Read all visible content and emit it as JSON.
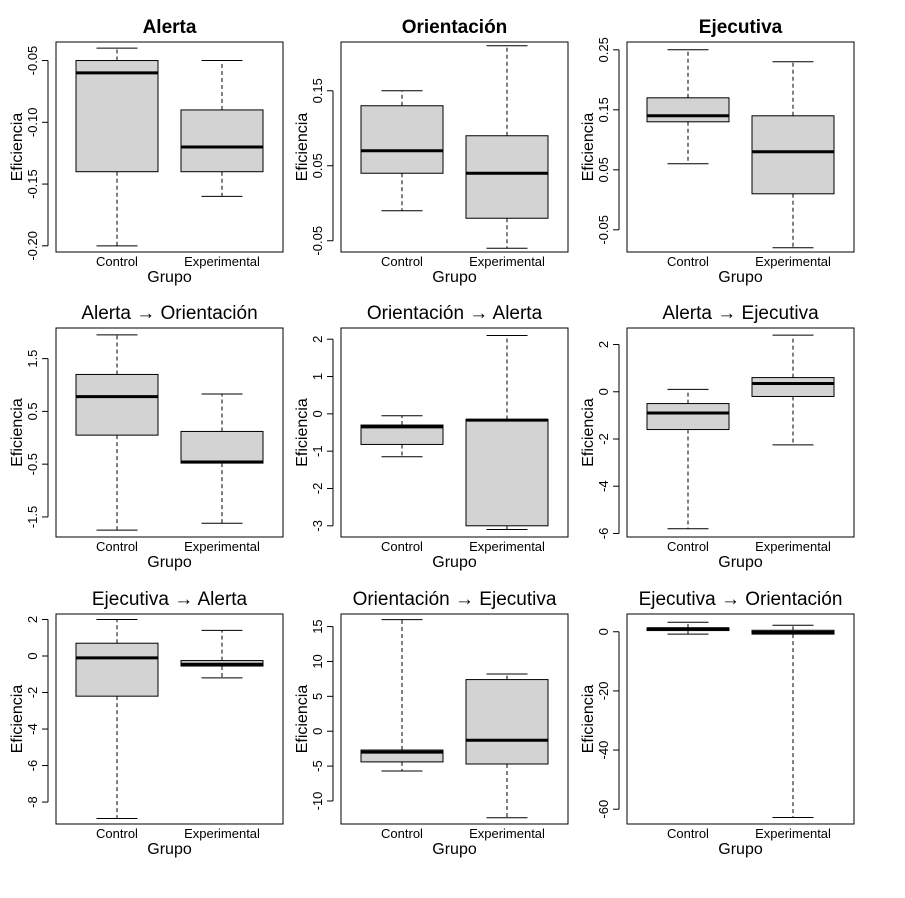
{
  "figure": {
    "shared": {
      "ylabel": "Eficiencia",
      "xlabel": "Grupo",
      "categories": [
        "Control",
        "Experimental"
      ]
    },
    "colors": {
      "box_fill": "#d3d3d3",
      "line": "#000000",
      "background": "#ffffff"
    }
  },
  "chart_data": [
    {
      "type": "boxplot",
      "title": "Alerta",
      "title_bold": true,
      "xlabel": "Grupo",
      "ylabel": "Eficiencia",
      "categories": [
        "Control",
        "Experimental"
      ],
      "ylim": [
        -0.205,
        -0.035
      ],
      "yticks": [
        -0.2,
        -0.15,
        -0.1,
        -0.05
      ],
      "ytick_labels": [
        "-0.20",
        "-0.15",
        "-0.10",
        "-0.05"
      ],
      "boxes": [
        {
          "name": "Control",
          "min": -0.2,
          "q1": -0.14,
          "median": -0.06,
          "q3": -0.05,
          "max": -0.04
        },
        {
          "name": "Experimental",
          "min": -0.16,
          "q1": -0.14,
          "median": -0.12,
          "q3": -0.09,
          "max": -0.05
        }
      ]
    },
    {
      "type": "boxplot",
      "title": "Orientación",
      "title_bold": true,
      "xlabel": "Grupo",
      "ylabel": "Eficiencia",
      "categories": [
        "Control",
        "Experimental"
      ],
      "ylim": [
        -0.065,
        0.215
      ],
      "yticks": [
        -0.05,
        0.05,
        0.15
      ],
      "ytick_labels": [
        "-0.05",
        "0.05",
        "0.15"
      ],
      "boxes": [
        {
          "name": "Control",
          "min": -0.01,
          "q1": 0.04,
          "median": 0.07,
          "q3": 0.13,
          "max": 0.15
        },
        {
          "name": "Experimental",
          "min": -0.06,
          "q1": -0.02,
          "median": 0.04,
          "q3": 0.09,
          "max": 0.21
        }
      ]
    },
    {
      "type": "boxplot",
      "title": "Ejecutiva",
      "title_bold": true,
      "xlabel": "Grupo",
      "ylabel": "Eficiencia",
      "categories": [
        "Control",
        "Experimental"
      ],
      "ylim": [
        -0.087,
        0.263
      ],
      "yticks": [
        -0.05,
        0.05,
        0.15,
        0.25
      ],
      "ytick_labels": [
        "-0.05",
        "0.05",
        "0.15",
        "0.25"
      ],
      "boxes": [
        {
          "name": "Control",
          "min": 0.06,
          "q1": 0.13,
          "median": 0.14,
          "q3": 0.17,
          "max": 0.25
        },
        {
          "name": "Experimental",
          "min": -0.08,
          "q1": 0.01,
          "median": 0.08,
          "q3": 0.14,
          "max": 0.23
        }
      ]
    },
    {
      "type": "boxplot",
      "title": "Alerta → Orientación",
      "title_bold": false,
      "xlabel": "Grupo",
      "ylabel": "Eficiencia",
      "categories": [
        "Control",
        "Experimental"
      ],
      "ylim": [
        -1.88,
        2.08
      ],
      "yticks": [
        -1.5,
        -0.5,
        0.5,
        1.5
      ],
      "ytick_labels": [
        "-1.5",
        "-0.5",
        "0.5",
        "1.5"
      ],
      "boxes": [
        {
          "name": "Control",
          "min": -1.75,
          "q1": 0.05,
          "median": 0.78,
          "q3": 1.2,
          "max": 1.95
        },
        {
          "name": "Experimental",
          "min": -1.62,
          "q1": -0.48,
          "median": -0.46,
          "q3": 0.12,
          "max": 0.83
        }
      ]
    },
    {
      "type": "boxplot",
      "title": "Orientación → Alerta",
      "title_bold": false,
      "xlabel": "Grupo",
      "ylabel": "Eficiencia",
      "categories": [
        "Control",
        "Experimental"
      ],
      "ylim": [
        -3.3,
        2.3
      ],
      "yticks": [
        -3,
        -2,
        -1,
        0,
        1,
        2
      ],
      "ytick_labels": [
        "-3",
        "-2",
        "-1",
        "0",
        "1",
        "2"
      ],
      "boxes": [
        {
          "name": "Control",
          "min": -1.15,
          "q1": -0.82,
          "median": -0.35,
          "q3": -0.3,
          "max": -0.05
        },
        {
          "name": "Experimental",
          "min": -3.1,
          "q1": -3.0,
          "median": -0.17,
          "q3": -0.15,
          "max": 2.1
        }
      ]
    },
    {
      "type": "boxplot",
      "title": "Alerta → Ejecutiva",
      "title_bold": false,
      "xlabel": "Grupo",
      "ylabel": "Eficiencia",
      "categories": [
        "Control",
        "Experimental"
      ],
      "ylim": [
        -6.15,
        2.7
      ],
      "yticks": [
        -6,
        -4,
        -2,
        0,
        2
      ],
      "ytick_labels": [
        "-6",
        "-4",
        "-2",
        "0",
        "2"
      ],
      "boxes": [
        {
          "name": "Control",
          "min": -5.8,
          "q1": -1.6,
          "median": -0.9,
          "q3": -0.5,
          "max": 0.1
        },
        {
          "name": "Experimental",
          "min": -2.25,
          "q1": -0.2,
          "median": 0.35,
          "q3": 0.6,
          "max": 2.4
        }
      ]
    },
    {
      "type": "boxplot",
      "title": "Ejecutiva → Alerta",
      "title_bold": false,
      "xlabel": "Grupo",
      "ylabel": "Eficiencia",
      "categories": [
        "Control",
        "Experimental"
      ],
      "ylim": [
        -9.2,
        2.3
      ],
      "yticks": [
        -8,
        -6,
        -4,
        -2,
        0,
        2
      ],
      "ytick_labels": [
        "-8",
        "-6",
        "-4",
        "-2",
        "0",
        "2"
      ],
      "boxes": [
        {
          "name": "Control",
          "min": -8.9,
          "q1": -2.2,
          "median": -0.1,
          "q3": 0.7,
          "max": 2.0
        },
        {
          "name": "Experimental",
          "min": -1.2,
          "q1": -0.55,
          "median": -0.45,
          "q3": -0.25,
          "max": 1.4
        }
      ]
    },
    {
      "type": "boxplot",
      "title": "Orientación → Ejecutiva",
      "title_bold": false,
      "xlabel": "Grupo",
      "ylabel": "Eficiencia",
      "categories": [
        "Control",
        "Experimental"
      ],
      "ylim": [
        -13.3,
        16.8
      ],
      "yticks": [
        -10,
        -5,
        0,
        5,
        10,
        15
      ],
      "ytick_labels": [
        "-10",
        "-5",
        "0",
        "5",
        "10",
        "15"
      ],
      "boxes": [
        {
          "name": "Control",
          "min": -5.7,
          "q1": -4.4,
          "median": -3.0,
          "q3": -2.7,
          "max": 16.0
        },
        {
          "name": "Experimental",
          "min": -12.4,
          "q1": -4.7,
          "median": -1.3,
          "q3": 7.4,
          "max": 8.2
        }
      ]
    },
    {
      "type": "boxplot",
      "title": "Ejecutiva → Orientación",
      "title_bold": false,
      "xlabel": "Grupo",
      "ylabel": "Eficiencia",
      "categories": [
        "Control",
        "Experimental"
      ],
      "ylim": [
        -65,
        6
      ],
      "yticks": [
        -60,
        -40,
        -20,
        0
      ],
      "ytick_labels": [
        "-60",
        "-40",
        "-20",
        "0"
      ],
      "boxes": [
        {
          "name": "Control",
          "min": -0.8,
          "q1": 0.4,
          "median": 1.0,
          "q3": 1.3,
          "max": 3.2
        },
        {
          "name": "Experimental",
          "min": -62.8,
          "q1": -0.8,
          "median": -0.2,
          "q3": 0.5,
          "max": 2.2
        }
      ]
    }
  ]
}
